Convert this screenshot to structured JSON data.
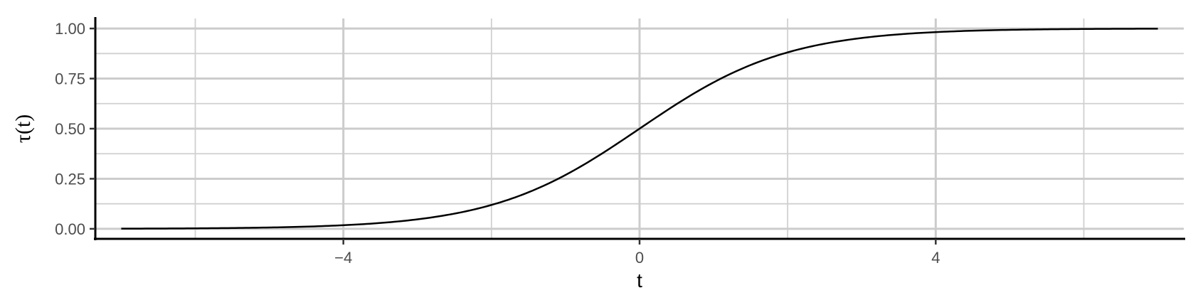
{
  "chart_data": {
    "type": "line",
    "xlabel": "t",
    "ylabel": "τ(t)",
    "xlim": [
      -7.35,
      7.35
    ],
    "ylim": [
      -0.05,
      1.05
    ],
    "x_ticks": [
      -4,
      0,
      4
    ],
    "x_tick_labels": [
      "−4",
      "0",
      "4"
    ],
    "x_minor_grid": [
      -6,
      -2,
      2,
      6
    ],
    "y_ticks": [
      0,
      0.25,
      0.5,
      0.75,
      1.0
    ],
    "y_tick_labels": [
      "0.00",
      "0.25",
      "0.50",
      "0.75",
      "1.00"
    ],
    "y_minor_grid": [
      0.125,
      0.375,
      0.625,
      0.875
    ],
    "grid": true,
    "series": [
      {
        "function": "logistic",
        "x": [
          -7,
          -6,
          -5,
          -4,
          -3,
          -2,
          -1,
          0,
          1,
          2,
          3,
          4,
          5,
          6,
          7
        ],
        "y": [
          0.001,
          0.002,
          0.007,
          0.018,
          0.047,
          0.119,
          0.269,
          0.5,
          0.731,
          0.881,
          0.953,
          0.982,
          0.993,
          0.998,
          0.999
        ]
      }
    ]
  }
}
